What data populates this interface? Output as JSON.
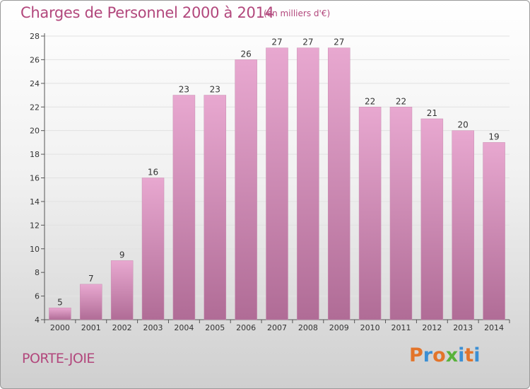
{
  "header": {
    "title": "Charges de Personnel 2000 à 2014",
    "subtitle": "(en milliers d'€)"
  },
  "footer": {
    "commune": "PORTE-JOIE",
    "brand": "Proxiti"
  },
  "colors": {
    "title": "#b2477c",
    "bar_top": "#e8a8d0",
    "bar_bottom": "#b06c96",
    "brand_letters": [
      "#e3742a",
      "#3b8fd4",
      "#e3742a",
      "#58b23a",
      "#3b8fd4",
      "#e3742a",
      "#3b8fd4"
    ]
  },
  "chart_data": {
    "type": "bar",
    "categories": [
      "2000",
      "2001",
      "2002",
      "2003",
      "2004",
      "2005",
      "2006",
      "2007",
      "2008",
      "2009",
      "2010",
      "2011",
      "2012",
      "2013",
      "2014"
    ],
    "values": [
      5,
      7,
      9,
      16,
      23,
      23,
      26,
      27,
      27,
      27,
      22,
      22,
      21,
      20,
      19
    ],
    "ylim": [
      4,
      28
    ],
    "yticks": [
      4,
      6,
      8,
      10,
      12,
      14,
      16,
      18,
      20,
      22,
      24,
      26,
      28
    ],
    "grid": true
  }
}
